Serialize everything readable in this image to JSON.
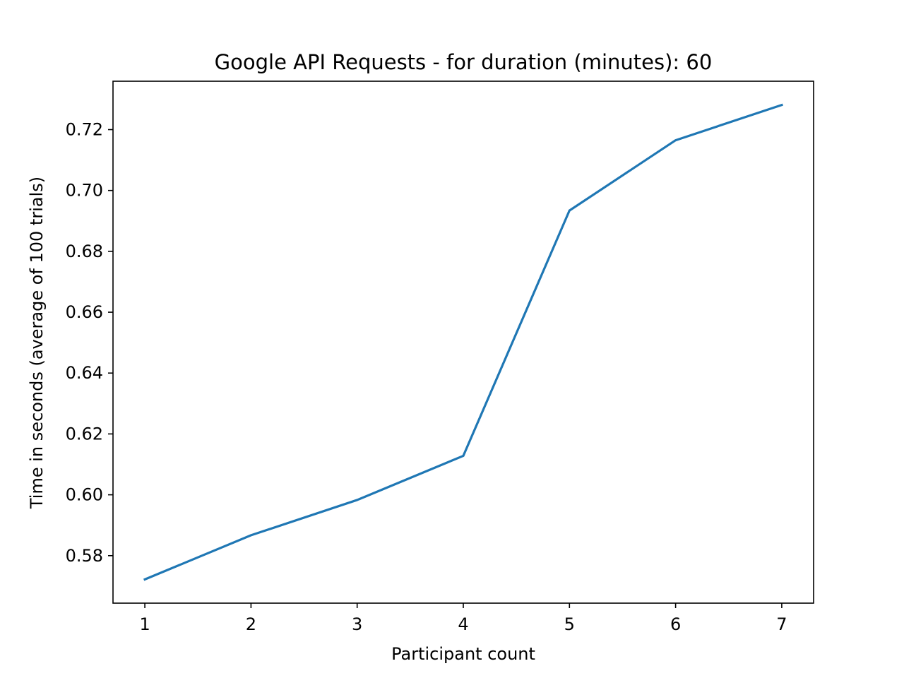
{
  "chart_data": {
    "type": "line",
    "title": "Google API Requests - for duration (minutes): 60",
    "xlabel": "Participant count",
    "ylabel": "Time in seconds (average of 100 trials)",
    "x": [
      1,
      2,
      3,
      4,
      5,
      6,
      7
    ],
    "series": [
      {
        "values": [
          0.5722,
          0.5867,
          0.5983,
          0.6128,
          0.6934,
          0.7165,
          0.7281
        ],
        "color": "#1f77b4"
      }
    ],
    "xlim": [
      0.7,
      7.3
    ],
    "ylim": [
      0.5644,
      0.7359
    ],
    "xticks": [
      1,
      2,
      3,
      4,
      5,
      6,
      7
    ],
    "xtick_labels": [
      "1",
      "2",
      "3",
      "4",
      "5",
      "6",
      "7"
    ],
    "yticks": [
      0.58,
      0.6,
      0.62,
      0.64,
      0.66,
      0.68,
      0.7,
      0.72
    ],
    "ytick_labels": [
      "0.58",
      "0.60",
      "0.62",
      "0.64",
      "0.66",
      "0.68",
      "0.70",
      "0.72"
    ],
    "grid": false,
    "legend": "none"
  }
}
